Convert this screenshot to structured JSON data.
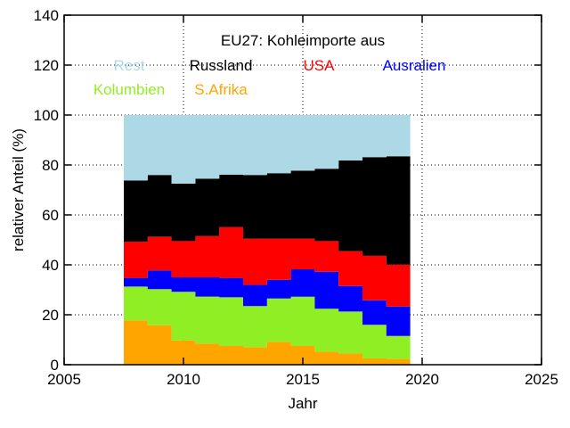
{
  "chart_data": {
    "type": "area",
    "title": "EU27: Kohleimporte aus",
    "xlabel": "Jahr",
    "ylabel": "relativer Anteil (%)",
    "xlim": [
      2005,
      2025
    ],
    "ylim": [
      0,
      140
    ],
    "xticks": [
      "2005",
      "2010",
      "2015",
      "2020",
      "2025"
    ],
    "yticks": [
      "0",
      "20",
      "40",
      "60",
      "80",
      "100",
      "120",
      "140"
    ],
    "grid": true,
    "x": [
      2008,
      2009,
      2010,
      2011,
      2012,
      2013,
      2014,
      2015,
      2016,
      2017,
      2018,
      2019
    ],
    "step": true,
    "series": [
      {
        "name": "S.Afrika",
        "color": "#ffa500",
        "values": [
          17.8,
          15.8,
          9.7,
          8.5,
          7.5,
          7.0,
          9.2,
          7.5,
          5.2,
          4.5,
          2.5,
          2.3
        ]
      },
      {
        "name": "Kolumbien",
        "color": "#90ee24",
        "values": [
          13.5,
          14.5,
          19.5,
          18.8,
          19.5,
          16.5,
          17.3,
          19.7,
          17.2,
          16.8,
          13.5,
          9.2
        ]
      },
      {
        "name": "Ausralien",
        "color": "#0000ff",
        "values": [
          3.5,
          7.5,
          5.8,
          7.7,
          7.8,
          8.5,
          7.5,
          11.0,
          14.8,
          10.2,
          9.8,
          11.8
        ]
      },
      {
        "name": "USA",
        "color": "#ff0000",
        "values": [
          14.5,
          13.5,
          14.5,
          16.5,
          20.3,
          18.5,
          16.5,
          12.3,
          12.3,
          14.0,
          17.8,
          16.8
        ]
      },
      {
        "name": "Russland",
        "color": "#000000",
        "values": [
          24.5,
          24.7,
          23.0,
          23.0,
          21.0,
          25.5,
          26.2,
          27.2,
          29.0,
          36.3,
          39.5,
          43.4
        ]
      },
      {
        "name": "Rest",
        "color": "#add8e6",
        "values": [
          26.2,
          24.0,
          27.5,
          25.5,
          23.9,
          24.0,
          23.3,
          22.3,
          21.5,
          18.2,
          16.9,
          16.5
        ]
      }
    ],
    "legend": {
      "placement": "top",
      "rows": [
        [
          "Rest",
          "Russland",
          "USA",
          "Ausralien"
        ],
        [
          "Kolumbien",
          "S.Afrika"
        ]
      ]
    }
  }
}
